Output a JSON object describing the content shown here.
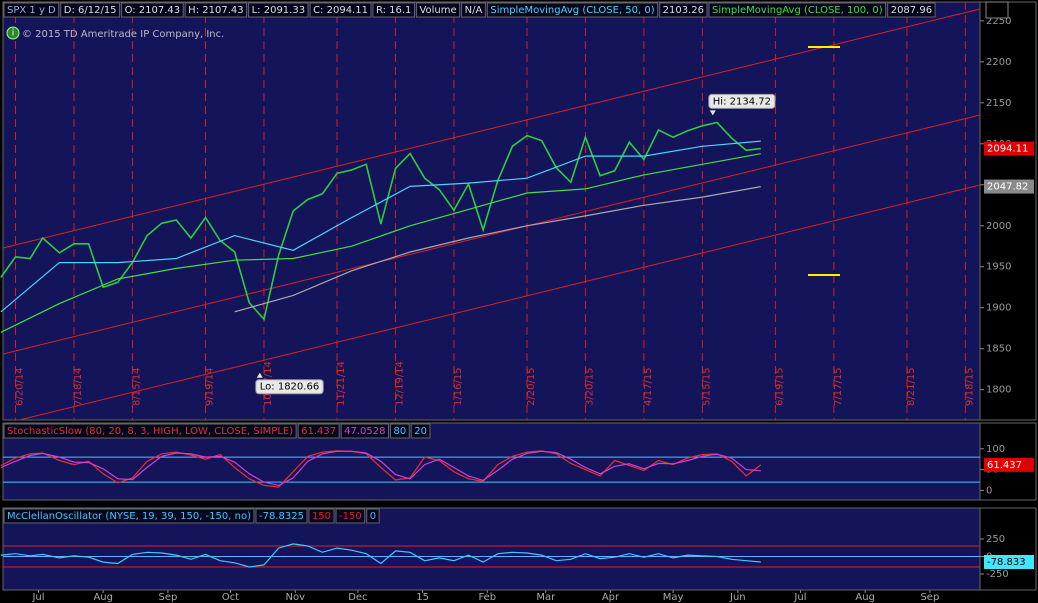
{
  "chart_data": [
    {
      "type": "line",
      "header": [
        "SPX 1 y D",
        "D: 6/12/15",
        "O: 2107.43",
        "H: 2107.43",
        "L: 2091.33",
        "C: 2094.11",
        "R: 16.1",
        "Volume",
        "N/A"
      ],
      "copyright": "© 2015 TD Ameritrade IP Company, Inc.",
      "xlim": [
        "6/14/14",
        "9/25/15"
      ],
      "ylim": [
        1763,
        2273
      ],
      "yticks": [
        1800,
        1850,
        1900,
        1950,
        2000,
        2050,
        2100,
        2150,
        2200,
        2250
      ],
      "date_lines": [
        "6/20/14",
        "7/18/14",
        "8/15/14",
        "9/19/14",
        "10/17/14",
        "11/21/14",
        "12/19/14",
        "1/16/15",
        "2/20/15",
        "3/20/15",
        "4/17/15",
        "5/15/15",
        "6/19/15",
        "7/17/15",
        "8/21/15",
        "9/18/15"
      ],
      "annotations": [
        {
          "text": "Hi: 2134.72",
          "x": "5/20/15",
          "value": 2134.72,
          "side": "above"
        },
        {
          "text": "Lo: 1820.66",
          "x": "10/15/14",
          "value": 1820.66,
          "side": "below"
        }
      ],
      "series": [
        {
          "color": "#2ecc40",
          "badge_color": "#e00000",
          "x": [
            "6/13/14",
            "6/20/14",
            "6/27/14",
            "7/3/14",
            "7/11/14",
            "7/18/14",
            "7/25/14",
            "8/1/14",
            "8/8/14",
            "8/15/14",
            "8/22/14",
            "8/29/14",
            "9/5/14",
            "9/12/14",
            "9/19/14",
            "9/26/14",
            "10/3/14",
            "10/10/14",
            "10/17/14",
            "10/24/14",
            "10/31/14",
            "11/7/14",
            "11/14/14",
            "11/21/14",
            "11/28/14",
            "12/5/14",
            "12/12/14",
            "12/19/14",
            "12/26/14",
            "1/2/15",
            "1/9/15",
            "1/16/15",
            "1/23/15",
            "1/30/15",
            "2/6/15",
            "2/13/15",
            "2/20/15",
            "2/27/15",
            "3/6/15",
            "3/13/15",
            "3/20/15",
            "3/27/15",
            "4/3/15",
            "4/10/15",
            "4/17/15",
            "4/24/15",
            "5/1/15",
            "5/8/15",
            "5/15/15",
            "5/22/15",
            "5/29/15",
            "6/5/15",
            "6/12/15"
          ],
          "values": [
            1937,
            1962,
            1960,
            1985,
            1967,
            1978,
            1978,
            1925,
            1931,
            1955,
            1988,
            2003,
            2007,
            1985,
            2010,
            1982,
            1968,
            1906,
            1886,
            1964,
            2018,
            2032,
            2039,
            2064,
            2068,
            2075,
            2002,
            2070,
            2088,
            2058,
            2044,
            2019,
            2051,
            1995,
            2055,
            2097,
            2110,
            2104,
            2071,
            2053,
            2108,
            2061,
            2067,
            2102,
            2081,
            2117,
            2108,
            2116,
            2122,
            2126,
            2107,
            2092,
            2094.11
          ]
        },
        {
          "name": "SimpleMovingAvg (CLOSE, 50, 0)",
          "color": "#4ad4ff",
          "header": true,
          "x": [
            "6/13/14",
            "7/11/14",
            "8/8/14",
            "9/5/14",
            "10/3/14",
            "10/31/14",
            "11/28/14",
            "12/26/14",
            "1/23/15",
            "2/20/15",
            "3/20/15",
            "4/17/15",
            "5/15/15",
            "6/12/15"
          ],
          "values": [
            1895,
            1955,
            1955,
            1960,
            1988,
            1970,
            2010,
            2048,
            2052,
            2058,
            2085,
            2085,
            2097,
            2103.26
          ]
        },
        {
          "name": "SimpleMovingAvg (CLOSE, 100, 0)",
          "color": "#44dd44",
          "header": true,
          "x": [
            "6/13/14",
            "7/11/14",
            "8/8/14",
            "9/5/14",
            "10/3/14",
            "10/31/14",
            "11/28/14",
            "12/26/14",
            "1/23/15",
            "2/20/15",
            "3/20/15",
            "4/17/15",
            "5/15/15",
            "6/12/15"
          ],
          "values": [
            1870,
            1905,
            1935,
            1948,
            1958,
            1960,
            1975,
            2000,
            2020,
            2040,
            2045,
            2062,
            2075,
            2087.96
          ]
        },
        {
          "color": "#aaaaaa",
          "badge_color": "#8a8a8a",
          "x": [
            "10/3/14",
            "10/31/14",
            "11/28/14",
            "12/26/14",
            "1/23/15",
            "2/20/15",
            "3/20/15",
            "4/17/15",
            "5/15/15",
            "6/12/15"
          ],
          "values": [
            1895,
            1915,
            1945,
            1968,
            1985,
            2000,
            2012,
            2025,
            2035,
            2047.82
          ]
        }
      ]
    },
    {
      "type": "line",
      "title": "StochasticSlow (80, 20, 8, 3, HIGH, LOW, CLOSE, SIMPLE)",
      "xlim": [
        "6/14/14",
        "9/25/15"
      ],
      "ylim": [
        -23,
        162
      ],
      "yticks": [
        0,
        50,
        100
      ],
      "levels": [
        80,
        20
      ],
      "level_colors": [
        "#40c8ff",
        "#40c8ff"
      ],
      "series": [
        {
          "color": "#e83030",
          "header": true,
          "badge_color": "#e00000",
          "x": [
            "6/13/14",
            "6/20/14",
            "6/27/14",
            "7/3/14",
            "7/11/14",
            "7/18/14",
            "7/25/14",
            "8/1/14",
            "8/8/14",
            "8/15/14",
            "8/22/14",
            "8/29/14",
            "9/5/14",
            "9/12/14",
            "9/19/14",
            "9/26/14",
            "10/3/14",
            "10/10/14",
            "10/17/14",
            "10/24/14",
            "10/31/14",
            "11/7/14",
            "11/14/14",
            "11/21/14",
            "11/28/14",
            "12/5/14",
            "12/12/14",
            "12/19/14",
            "12/26/14",
            "1/2/15",
            "1/9/15",
            "1/16/15",
            "1/23/15",
            "1/30/15",
            "2/6/15",
            "2/13/15",
            "2/20/15",
            "2/27/15",
            "3/6/15",
            "3/13/15",
            "3/20/15",
            "3/27/15",
            "4/3/15",
            "4/10/15",
            "4/17/15",
            "4/24/15",
            "5/1/15",
            "5/8/15",
            "5/15/15",
            "5/22/15",
            "5/29/15",
            "6/5/15",
            "6/12/15"
          ],
          "values": [
            60,
            78,
            88,
            90,
            72,
            62,
            70,
            40,
            18,
            30,
            70,
            88,
            92,
            85,
            75,
            86,
            55,
            28,
            12,
            8,
            45,
            82,
            92,
            95,
            94,
            88,
            55,
            25,
            30,
            80,
            72,
            45,
            28,
            22,
            62,
            82,
            92,
            95,
            88,
            65,
            50,
            35,
            72,
            60,
            48,
            72,
            62,
            78,
            86,
            88,
            70,
            35,
            61.437
          ]
        },
        {
          "color": "#d040d0",
          "header": true,
          "x": [
            "6/13/14",
            "6/20/14",
            "6/27/14",
            "7/3/14",
            "7/11/14",
            "7/18/14",
            "7/25/14",
            "8/1/14",
            "8/8/14",
            "8/15/14",
            "8/22/14",
            "8/29/14",
            "9/5/14",
            "9/12/14",
            "9/19/14",
            "9/26/14",
            "10/3/14",
            "10/10/14",
            "10/17/14",
            "10/24/14",
            "10/31/14",
            "11/7/14",
            "11/14/14",
            "11/21/14",
            "11/28/14",
            "12/5/14",
            "12/12/14",
            "12/19/14",
            "12/26/14",
            "1/2/15",
            "1/9/15",
            "1/16/15",
            "1/23/15",
            "1/30/15",
            "2/6/15",
            "2/13/15",
            "2/20/15",
            "2/27/15",
            "3/6/15",
            "3/13/15",
            "3/20/15",
            "3/27/15",
            "4/3/15",
            "4/10/15",
            "4/17/15",
            "4/24/15",
            "5/1/15",
            "5/8/15",
            "5/15/15",
            "5/22/15",
            "5/29/15",
            "6/5/15",
            "6/12/15"
          ],
          "values": [
            55,
            70,
            84,
            89,
            80,
            68,
            67,
            52,
            28,
            26,
            55,
            82,
            90,
            88,
            80,
            82,
            68,
            40,
            20,
            12,
            30,
            70,
            88,
            94,
            94,
            90,
            70,
            38,
            28,
            62,
            75,
            55,
            35,
            24,
            48,
            75,
            89,
            94,
            91,
            75,
            55,
            40,
            58,
            64,
            52,
            65,
            64,
            72,
            82,
            87,
            78,
            50,
            47.0528
          ]
        }
      ]
    },
    {
      "type": "line",
      "title": "McClellanOscillator (NYSE, 19, 39, 150, -150, no)",
      "xlim": [
        "6/14/14",
        "9/25/15"
      ],
      "ylim": [
        -479,
        693
      ],
      "yticks": [
        -250,
        0,
        250
      ],
      "levels": [
        150,
        -150,
        0
      ],
      "level_colors": [
        "#e02020",
        "#e02020",
        "#60b0ff"
      ],
      "xticks": [
        {
          "value": "7/1/14",
          "label": "Jul"
        },
        {
          "value": "8/1/14",
          "label": "Aug"
        },
        {
          "value": "9/1/14",
          "label": "Sep"
        },
        {
          "value": "10/1/14",
          "label": "Oct"
        },
        {
          "value": "11/1/14",
          "label": "Nov"
        },
        {
          "value": "12/1/14",
          "label": "Dec"
        },
        {
          "value": "1/1/15",
          "label": "15"
        },
        {
          "value": "2/1/15",
          "label": "Feb"
        },
        {
          "value": "3/1/15",
          "label": "Mar"
        },
        {
          "value": "4/1/15",
          "label": "Apr"
        },
        {
          "value": "5/1/15",
          "label": "May"
        },
        {
          "value": "6/1/15",
          "label": "Jun"
        },
        {
          "value": "7/1/15",
          "label": "Jul"
        },
        {
          "value": "8/1/15",
          "label": "Aug"
        },
        {
          "value": "9/1/15",
          "label": "Sep"
        }
      ],
      "series": [
        {
          "color": "#40c8ff",
          "header": true,
          "badge_color": "#40e8ff",
          "badge_label": "-78.833",
          "x": [
            "6/13/14",
            "6/20/14",
            "6/27/14",
            "7/3/14",
            "7/11/14",
            "7/18/14",
            "7/25/14",
            "8/1/14",
            "8/8/14",
            "8/15/14",
            "8/22/14",
            "8/29/14",
            "9/5/14",
            "9/12/14",
            "9/19/14",
            "9/26/14",
            "10/3/14",
            "10/10/14",
            "10/17/14",
            "10/24/14",
            "10/31/14",
            "11/7/14",
            "11/14/14",
            "11/21/14",
            "11/28/14",
            "12/5/14",
            "12/12/14",
            "12/19/14",
            "12/26/14",
            "1/2/15",
            "1/9/15",
            "1/16/15",
            "1/23/15",
            "1/30/15",
            "2/6/15",
            "2/13/15",
            "2/20/15",
            "2/27/15",
            "3/6/15",
            "3/13/15",
            "3/20/15",
            "3/27/15",
            "4/3/15",
            "4/10/15",
            "4/17/15",
            "4/24/15",
            "5/1/15",
            "5/8/15",
            "5/15/15",
            "5/22/15",
            "5/29/15",
            "6/5/15",
            "6/12/15"
          ],
          "values": [
            20,
            40,
            10,
            30,
            -20,
            10,
            -10,
            -80,
            -100,
            30,
            60,
            50,
            20,
            -40,
            30,
            -60,
            -90,
            -150,
            -120,
            120,
            180,
            150,
            60,
            120,
            90,
            40,
            -100,
            80,
            60,
            -60,
            -20,
            -60,
            20,
            -80,
            40,
            60,
            50,
            20,
            -60,
            -40,
            40,
            -30,
            -10,
            40,
            -10,
            40,
            -20,
            20,
            10,
            0,
            -40,
            -60,
            -78.8325
          ]
        }
      ]
    }
  ]
}
